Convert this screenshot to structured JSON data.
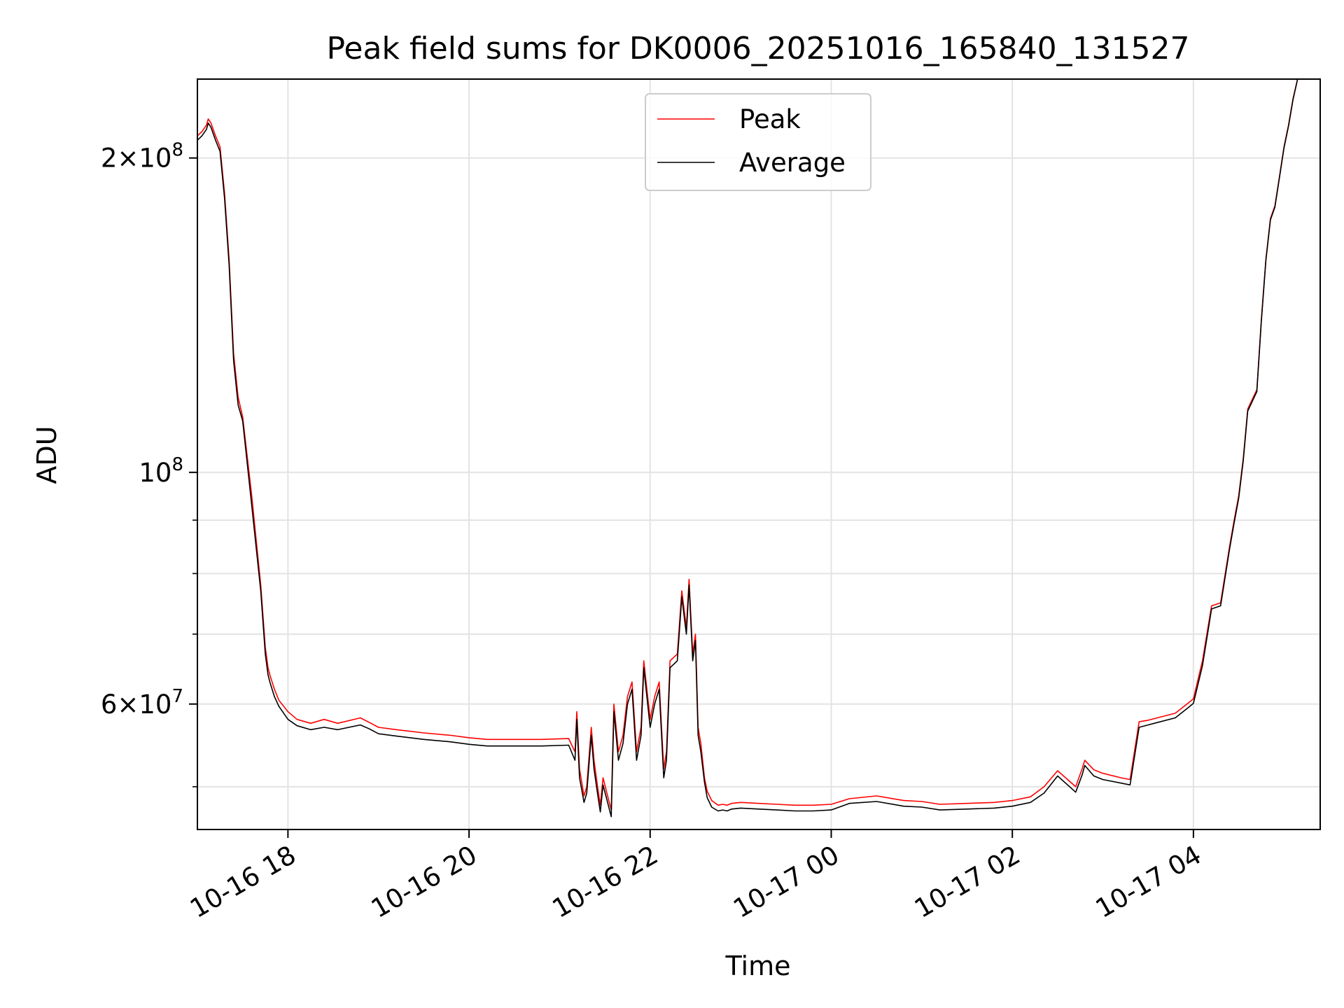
{
  "chart_data": {
    "type": "line",
    "title": "Peak field sums for DK0006_20251016_165840_131527",
    "xlabel": "Time",
    "ylabel": "ADU",
    "x_unit": "hours since 10-16 17:00",
    "xlim": [
      0.0,
      12.4
    ],
    "yscale": "log",
    "ylim": [
      45500000,
      238000000
    ],
    "x_ticks": [
      {
        "value": 1,
        "label": "10-16 18"
      },
      {
        "value": 3,
        "label": "10-16 20"
      },
      {
        "value": 5,
        "label": "10-16 22"
      },
      {
        "value": 7,
        "label": "10-17 00"
      },
      {
        "value": 9,
        "label": "10-17 02"
      },
      {
        "value": 11,
        "label": "10-17 04"
      }
    ],
    "y_major_ticks": [
      {
        "value": 100000000,
        "label_base": "10",
        "label_exp": "8",
        "label_coef": ""
      },
      {
        "value": 200000000,
        "label_base": "10",
        "label_exp": "8",
        "label_coef": "2"
      },
      {
        "value": 60000000,
        "label_base": "10",
        "label_exp": "7",
        "label_coef": "6"
      }
    ],
    "y_minor_gridlines": [
      50000000,
      70000000,
      80000000,
      90000000
    ],
    "times_symbol": "×",
    "legend": {
      "location": "upper center",
      "entries": [
        {
          "label": "Peak",
          "color": "#ff0000"
        },
        {
          "label": "Average",
          "color": "#000000"
        }
      ]
    },
    "series": [
      {
        "name": "Peak",
        "color": "#ff0000",
        "x": [
          0.0,
          0.05,
          0.1,
          0.12,
          0.15,
          0.2,
          0.25,
          0.3,
          0.35,
          0.4,
          0.45,
          0.5,
          0.6,
          0.7,
          0.75,
          0.78,
          0.8,
          0.85,
          0.9,
          1.0,
          1.1,
          1.25,
          1.4,
          1.55,
          1.8,
          1.9,
          2.0,
          2.2,
          2.5,
          2.8,
          3.0,
          3.2,
          3.5,
          3.8,
          4.1,
          4.17,
          4.19,
          4.22,
          4.27,
          4.3,
          4.35,
          4.38,
          4.42,
          4.45,
          4.48,
          4.53,
          4.57,
          4.6,
          4.65,
          4.7,
          4.75,
          4.8,
          4.85,
          4.9,
          4.93,
          5.0,
          5.05,
          5.1,
          5.15,
          5.18,
          5.22,
          5.3,
          5.35,
          5.4,
          5.43,
          5.47,
          5.5,
          5.53,
          5.56,
          5.6,
          5.63,
          5.68,
          5.75,
          5.8,
          5.85,
          5.9,
          6.0,
          6.2,
          6.4,
          6.6,
          6.8,
          7.0,
          7.2,
          7.5,
          7.8,
          8.0,
          8.2,
          8.5,
          8.8,
          9.0,
          9.2,
          9.35,
          9.5,
          9.7,
          9.77,
          9.8,
          9.9,
          10.0,
          10.2,
          10.3,
          10.4,
          10.5,
          10.6,
          10.8,
          10.95,
          11.0,
          11.1,
          11.2,
          11.3,
          11.4,
          11.45,
          11.5,
          11.55,
          11.6,
          11.7,
          11.75,
          11.8,
          11.85,
          11.9,
          11.95,
          12.0,
          12.05,
          12.1,
          12.15,
          12.2,
          12.25,
          12.3
        ],
        "y": [
          210000000,
          212000000,
          215000000,
          218000000,
          216000000,
          210000000,
          205000000,
          185000000,
          160000000,
          130000000,
          118000000,
          113000000,
          95000000,
          78000000,
          68000000,
          65000000,
          64000000,
          62000000,
          60500000,
          59000000,
          58000000,
          57500000,
          58000000,
          57500000,
          58200000,
          57600000,
          57000000,
          56700000,
          56300000,
          56000000,
          55700000,
          55500000,
          55500000,
          55500000,
          55600000,
          54000000,
          59000000,
          52000000,
          49000000,
          50000000,
          57000000,
          53000000,
          50000000,
          48000000,
          51000000,
          49000000,
          47500000,
          60000000,
          54000000,
          56000000,
          61000000,
          63000000,
          54000000,
          57000000,
          66000000,
          58000000,
          61000000,
          63000000,
          52000000,
          54000000,
          66000000,
          67000000,
          77000000,
          71000000,
          79000000,
          67000000,
          70000000,
          57000000,
          55000000,
          51000000,
          49500000,
          48500000,
          48000000,
          48100000,
          48000000,
          48200000,
          48300000,
          48200000,
          48100000,
          48000000,
          48000000,
          48100000,
          48700000,
          49000000,
          48500000,
          48400000,
          48100000,
          48200000,
          48300000,
          48500000,
          48900000,
          50000000,
          51800000,
          50000000,
          52000000,
          53000000,
          51900000,
          51500000,
          51000000,
          50800000,
          57700000,
          57900000,
          58200000,
          58800000,
          60200000,
          60700000,
          66000000,
          74500000,
          75000000,
          85000000,
          90000000,
          95000000,
          103000000,
          115000000,
          120000000,
          140000000,
          160000000,
          175000000,
          180000000,
          192000000,
          205000000,
          215000000,
          228000000,
          238000000,
          238000000,
          238000000,
          238000000
        ]
      },
      {
        "name": "Average",
        "color": "#000000",
        "x": [
          0.0,
          0.05,
          0.1,
          0.12,
          0.15,
          0.2,
          0.25,
          0.3,
          0.35,
          0.4,
          0.45,
          0.5,
          0.6,
          0.7,
          0.75,
          0.78,
          0.8,
          0.85,
          0.9,
          1.0,
          1.1,
          1.25,
          1.4,
          1.55,
          1.8,
          1.9,
          2.0,
          2.2,
          2.5,
          2.8,
          3.0,
          3.2,
          3.5,
          3.8,
          4.1,
          4.17,
          4.19,
          4.22,
          4.27,
          4.3,
          4.35,
          4.38,
          4.42,
          4.45,
          4.48,
          4.53,
          4.57,
          4.6,
          4.65,
          4.7,
          4.75,
          4.8,
          4.85,
          4.9,
          4.93,
          5.0,
          5.05,
          5.1,
          5.15,
          5.18,
          5.22,
          5.3,
          5.35,
          5.4,
          5.43,
          5.47,
          5.5,
          5.53,
          5.56,
          5.6,
          5.63,
          5.68,
          5.75,
          5.8,
          5.85,
          5.9,
          6.0,
          6.2,
          6.4,
          6.6,
          6.8,
          7.0,
          7.2,
          7.5,
          7.8,
          8.0,
          8.2,
          8.5,
          8.8,
          9.0,
          9.2,
          9.35,
          9.5,
          9.7,
          9.77,
          9.8,
          9.9,
          10.0,
          10.2,
          10.3,
          10.4,
          10.5,
          10.6,
          10.8,
          10.95,
          11.0,
          11.1,
          11.2,
          11.3,
          11.4,
          11.45,
          11.5,
          11.55,
          11.6,
          11.7,
          11.75,
          11.8,
          11.85,
          11.9,
          11.95,
          12.0,
          12.05,
          12.1,
          12.15,
          12.2,
          12.25,
          12.3
        ],
        "y": [
          208000000,
          210000000,
          213000000,
          216000000,
          214000000,
          208000000,
          203000000,
          183000000,
          158000000,
          128000000,
          116000000,
          112000000,
          93000000,
          77000000,
          67000000,
          64000000,
          63000000,
          61000000,
          59700000,
          58000000,
          57200000,
          56700000,
          57000000,
          56700000,
          57300000,
          56800000,
          56200000,
          55900000,
          55500000,
          55200000,
          54900000,
          54700000,
          54700000,
          54700000,
          54800000,
          53000000,
          58000000,
          51000000,
          48300000,
          49300000,
          56000000,
          52000000,
          49200000,
          47300000,
          50200000,
          48300000,
          46800000,
          59000000,
          53000000,
          55000000,
          60000000,
          62000000,
          53000000,
          56000000,
          65000000,
          57000000,
          60000000,
          62000000,
          51000000,
          53000000,
          65000000,
          66000000,
          76000000,
          70000000,
          78000000,
          66000000,
          69000000,
          56000000,
          54000000,
          50500000,
          48800000,
          47800000,
          47400000,
          47500000,
          47400000,
          47600000,
          47700000,
          47600000,
          47500000,
          47400000,
          47400000,
          47500000,
          48200000,
          48400000,
          47900000,
          47800000,
          47500000,
          47600000,
          47700000,
          47900000,
          48300000,
          49300000,
          51200000,
          49400000,
          51300000,
          52400000,
          51200000,
          50800000,
          50400000,
          50200000,
          57000000,
          57300000,
          57600000,
          58200000,
          59600000,
          60100000,
          65300000,
          74000000,
          74500000,
          84500000,
          89500000,
          94500000,
          102500000,
          114500000,
          119500000,
          139500000,
          159500000,
          174500000,
          179500000,
          191500000,
          204500000,
          214500000,
          227500000,
          238000000,
          238000000,
          238000000,
          238000000
        ]
      }
    ]
  }
}
